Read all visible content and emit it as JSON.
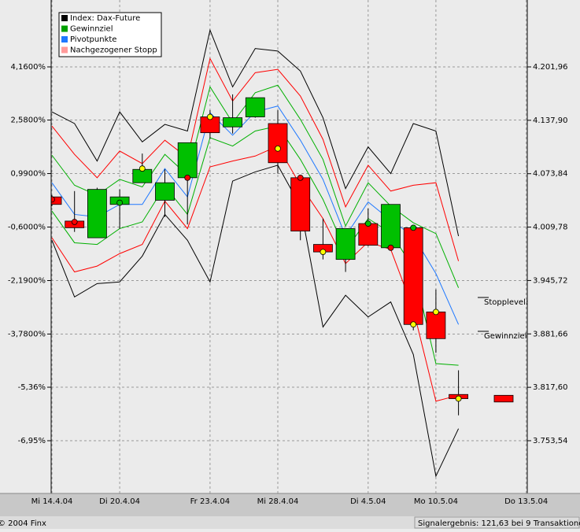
{
  "chart_data": {
    "type": "candlestick",
    "categories": [
      "Mi 14.4.04",
      null,
      null,
      "Di 20.4.04",
      null,
      null,
      null,
      "Fr 23.4.04",
      null,
      null,
      "Mi 28.4.04",
      null,
      null,
      null,
      "Di 4.5.04",
      null,
      null,
      "Mo 10.5.04",
      null,
      null,
      null,
      "Do 13.5.04"
    ],
    "ylim": [
      -8.517,
      6.148
    ],
    "yticks": [
      {
        "value": 4.16,
        "label": "4,1600%"
      },
      {
        "value": 2.58,
        "label": "2,5800%"
      },
      {
        "value": 0.99,
        "label": "0,9900%"
      },
      {
        "value": -0.6,
        "label": "-0,6000%"
      },
      {
        "value": -2.19,
        "label": "-2,1900%"
      },
      {
        "value": -3.78,
        "label": "-3,7800%"
      },
      {
        "value": -5.36,
        "label": "-5,36%"
      },
      {
        "value": -6.95,
        "label": "-6,95%"
      }
    ],
    "y2lim": [
      3690.29,
      4282.2
    ],
    "y2ticks": [
      {
        "value": 4201.96,
        "label": "4.201,96"
      },
      {
        "value": 4137.9,
        "label": "4.137,90"
      },
      {
        "value": 4073.84,
        "label": "4.073,84"
      },
      {
        "value": 4009.78,
        "label": "4.009,78"
      },
      {
        "value": 3945.72,
        "label": "3.945,72"
      },
      {
        "value": 3881.66,
        "label": "3.881,66"
      },
      {
        "value": 3817.6,
        "label": "3.817,60"
      },
      {
        "value": 3753.54,
        "label": "3.753,54"
      }
    ],
    "grid": true,
    "legend": [
      {
        "name": "Index: Dax-Future",
        "color": "#000000"
      },
      {
        "name": "Gewinnziel",
        "color": "#00a000"
      },
      {
        "name": "Pivotpunkte",
        "color": "#1e78ff"
      },
      {
        "name": "Nachgezogener Stopp",
        "color": "#ff9a9a"
      }
    ],
    "legend_position": "upper left",
    "candles": {
      "axis": "y2",
      "up_color": "#00c000",
      "down_color": "#ff0000",
      "open": [
        4046,
        4017,
        3997,
        4037,
        4063,
        4042,
        4069,
        4142,
        4130,
        4142,
        4134,
        4069,
        3989,
        3971,
        4014,
        3985,
        4009,
        3908,
        3809,
        null,
        3808,
        null
      ],
      "high": [
        4048,
        4053,
        4057,
        4055,
        4098,
        4079,
        4111,
        4150,
        4169,
        4165,
        4150,
        4072,
        4020,
        4008,
        4032,
        4037,
        4009,
        3935,
        3838,
        null,
        3808,
        null
      ],
      "low": [
        4035,
        4004,
        3997,
        4008,
        4063,
        4022,
        4013,
        4116,
        4122,
        4141,
        4074,
        3994,
        3971,
        3956,
        3987,
        3982,
        3886,
        3859,
        3784,
        null,
        3800,
        null
      ],
      "close": [
        4037,
        4009,
        4055,
        4046,
        4079,
        4063,
        4111,
        4123,
        4141,
        4165,
        4087,
        4005,
        3980,
        4008,
        3988,
        4037,
        3893,
        3876,
        3804,
        null,
        3800,
        null
      ]
    },
    "bands": [
      {
        "axis": "y2",
        "color": "#000000",
        "values": [
          4148,
          4134,
          4089,
          4148,
          4112,
          4133,
          4125,
          4246,
          4178,
          4224,
          4221,
          4197,
          4141,
          4056,
          4106,
          4074,
          4134,
          4125,
          3999,
          null,
          null,
          null
        ]
      },
      {
        "axis": "y2",
        "color": "#ff0000",
        "values": [
          4131,
          4097,
          4069,
          4101,
          4086,
          4114,
          4093,
          4212,
          4161,
          4195,
          4199,
          4167,
          4115,
          4034,
          4084,
          4053,
          4060,
          4063,
          3969,
          null,
          null,
          null
        ]
      },
      {
        "axis": "y2",
        "color": "#00b000",
        "values": [
          4096,
          4060,
          4048,
          4067,
          4058,
          4097,
          4072,
          4178,
          4135,
          4171,
          4180,
          4139,
          4091,
          4011,
          4063,
          4035,
          4015,
          4002,
          3937,
          null,
          null,
          null
        ]
      },
      {
        "axis": "y2",
        "color": "#1e78ff",
        "values": [
          4063,
          4025,
          4022,
          4037,
          4037,
          4080,
          4046,
          4147,
          4120,
          4148,
          4155,
          4114,
          4067,
          3999,
          4040,
          4018,
          3999,
          3954,
          3893,
          null,
          null,
          null
        ]
      },
      {
        "axis": "y2",
        "color": "#00b000",
        "values": [
          4029,
          3991,
          3989,
          4008,
          4016,
          4059,
          4025,
          4117,
          4107,
          4125,
          4131,
          4091,
          4043,
          3982,
          4020,
          4003,
          3961,
          3846,
          3844,
          null,
          null,
          null
        ]
      },
      {
        "axis": "y2",
        "color": "#ff0000",
        "values": [
          3997,
          3956,
          3963,
          3978,
          3989,
          4041,
          4008,
          4082,
          4089,
          4095,
          4107,
          4060,
          4020,
          3966,
          3992,
          3983,
          3911,
          3801,
          3808,
          null,
          null,
          null
        ]
      },
      {
        "axis": "y2",
        "color": "#000000",
        "values": [
          3994,
          3926,
          3942,
          3944,
          3975,
          4025,
          3994,
          3944,
          4065,
          4076,
          4084,
          4035,
          3890,
          3928,
          3902,
          3920,
          3857,
          3711,
          3768,
          null,
          null,
          null
        ]
      }
    ],
    "markers": [
      {
        "x": 0,
        "value": 4043,
        "color": "#ff0000"
      },
      {
        "x": 1,
        "value": 4016,
        "color": "#ff0000"
      },
      {
        "x": 3,
        "value": 4039,
        "color": "#00c000"
      },
      {
        "x": 4,
        "value": 4080,
        "color": "#ffff00"
      },
      {
        "x": 6,
        "value": 4069,
        "color": "#ff0000"
      },
      {
        "x": 7,
        "value": 4142,
        "color": "#ffff00"
      },
      {
        "x": 10,
        "value": 4104,
        "color": "#ffff00"
      },
      {
        "x": 11,
        "value": 4069,
        "color": "#ff0000"
      },
      {
        "x": 12,
        "value": 3980,
        "color": "#ffff00"
      },
      {
        "x": 14,
        "value": 4014,
        "color": "#00c000"
      },
      {
        "x": 15,
        "value": 3985,
        "color": "#ff0000"
      },
      {
        "x": 16,
        "value": 4009,
        "color": "#00c000"
      },
      {
        "x": 16,
        "value": 3893,
        "color": "#ffff00"
      },
      {
        "x": 17,
        "value": 3908,
        "color": "#ffff00"
      },
      {
        "x": 18,
        "value": 3804,
        "color": "#ffff00"
      }
    ],
    "annotations": [
      "Stopplevel:",
      "Gewinnziel:"
    ],
    "copyright": "© 2004 Finx",
    "summary": "Signalergebnis: 121,63 bei 9 Transaktionen"
  }
}
